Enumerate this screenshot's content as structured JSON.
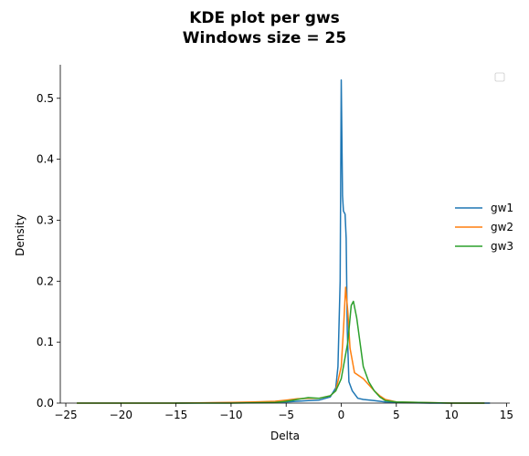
{
  "chart_data": {
    "type": "line",
    "title_lines": [
      "KDE plot per gws",
      "Windows size = 25"
    ],
    "xlabel": "Delta",
    "ylabel": "Density",
    "xlim": [
      -25.5,
      15.3
    ],
    "ylim": [
      0,
      0.555
    ],
    "xticks": [
      -25,
      -20,
      -15,
      -10,
      -5,
      0,
      5,
      10,
      15
    ],
    "xtick_labels": [
      "−25",
      "−20",
      "−15",
      "−10",
      "−5",
      "0",
      "5",
      "10",
      "15"
    ],
    "yticks": [
      0.0,
      0.1,
      0.2,
      0.3,
      0.4,
      0.5
    ],
    "ytick_labels": [
      "0.0",
      "0.1",
      "0.2",
      "0.3",
      "0.4",
      "0.5"
    ],
    "legend_position": "right",
    "series": [
      {
        "name": "gw1",
        "color": "#1f77b4",
        "points": [
          [
            -15,
            0
          ],
          [
            -8,
            0.001
          ],
          [
            -5,
            0.002
          ],
          [
            -3,
            0.004
          ],
          [
            -2,
            0.005
          ],
          [
            -1,
            0.01
          ],
          [
            -0.5,
            0.025
          ],
          [
            -0.3,
            0.06
          ],
          [
            -0.1,
            0.2
          ],
          [
            0.0,
            0.53
          ],
          [
            0.12,
            0.34
          ],
          [
            0.2,
            0.315
          ],
          [
            0.35,
            0.31
          ],
          [
            0.45,
            0.27
          ],
          [
            0.55,
            0.12
          ],
          [
            0.7,
            0.035
          ],
          [
            1.0,
            0.02
          ],
          [
            1.5,
            0.008
          ],
          [
            2,
            0.006
          ],
          [
            3,
            0.004
          ],
          [
            4,
            0.002
          ],
          [
            5,
            0.001
          ],
          [
            8,
            0
          ],
          [
            13.5,
            0
          ]
        ]
      },
      {
        "name": "gw2",
        "color": "#ff7f0e",
        "points": [
          [
            -24,
            0
          ],
          [
            -15,
            0
          ],
          [
            -10,
            0.001
          ],
          [
            -8,
            0.002
          ],
          [
            -6,
            0.003
          ],
          [
            -5,
            0.005
          ],
          [
            -4,
            0.007
          ],
          [
            -3,
            0.008
          ],
          [
            -2,
            0.008
          ],
          [
            -1,
            0.012
          ],
          [
            -0.5,
            0.02
          ],
          [
            0,
            0.06
          ],
          [
            0.2,
            0.12
          ],
          [
            0.4,
            0.19
          ],
          [
            0.6,
            0.15
          ],
          [
            0.8,
            0.09
          ],
          [
            1.2,
            0.05
          ],
          [
            2,
            0.04
          ],
          [
            2.5,
            0.03
          ],
          [
            3,
            0.02
          ],
          [
            3.5,
            0.012
          ],
          [
            4,
            0.006
          ],
          [
            5,
            0.002
          ],
          [
            7,
            0.001
          ],
          [
            10,
            0
          ],
          [
            13,
            0
          ]
        ]
      },
      {
        "name": "gw3",
        "color": "#2ca02c",
        "points": [
          [
            -24,
            0
          ],
          [
            -10,
            0
          ],
          [
            -6,
            0.001
          ],
          [
            -5,
            0.003
          ],
          [
            -4,
            0.006
          ],
          [
            -3,
            0.009
          ],
          [
            -2,
            0.008
          ],
          [
            -1,
            0.012
          ],
          [
            -0.5,
            0.02
          ],
          [
            0,
            0.04
          ],
          [
            0.3,
            0.07
          ],
          [
            0.6,
            0.1
          ],
          [
            0.9,
            0.16
          ],
          [
            1.1,
            0.167
          ],
          [
            1.4,
            0.14
          ],
          [
            1.7,
            0.1
          ],
          [
            2,
            0.06
          ],
          [
            2.5,
            0.035
          ],
          [
            3,
            0.02
          ],
          [
            3.5,
            0.01
          ],
          [
            4,
            0.004
          ],
          [
            5,
            0.002
          ],
          [
            7,
            0.001
          ],
          [
            10,
            0
          ],
          [
            13,
            0
          ]
        ]
      }
    ]
  }
}
